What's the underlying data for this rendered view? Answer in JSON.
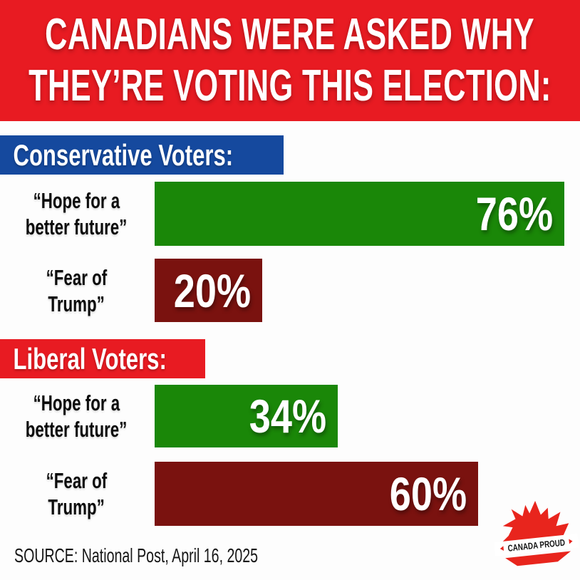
{
  "header": {
    "line1": "CANADIANS WERE ASKED WHY",
    "line2": "THEY’RE VOTING THIS ELECTION:",
    "bg": "#E81B22"
  },
  "chart_data": {
    "type": "bar",
    "orientation": "horizontal",
    "title": "Canadians were asked why they're voting this election",
    "xlim": [
      0,
      100
    ],
    "value_suffix": "%",
    "grid": false,
    "legend": false,
    "groups": [
      {
        "label": "Conservative Voters:",
        "banner_color": "#15499E",
        "bars": [
          {
            "label_line1": "“Hope for a",
            "label_line2": "better future”",
            "value": 76,
            "display": "76%",
            "color": "#1A8708"
          },
          {
            "label_line1": "“Fear of",
            "label_line2": "Trump”",
            "value": 20,
            "display": "20%",
            "color": "#7A120F"
          }
        ]
      },
      {
        "label": "Liberal Voters:",
        "banner_color": "#E81B22",
        "bars": [
          {
            "label_line1": "“Hope for a",
            "label_line2": "better future”",
            "value": 34,
            "display": "34%",
            "color": "#1A8708"
          },
          {
            "label_line1": "“Fear of",
            "label_line2": "Trump”",
            "value": 60,
            "display": "60%",
            "color": "#7A120F"
          }
        ]
      }
    ]
  },
  "footer": {
    "source": "SOURCE: National Post, April 16, 2025"
  },
  "logo": {
    "text": "CANADA PROUD",
    "leaf_color": "#E8251D",
    "banner_bg": "#FFFFFF"
  }
}
